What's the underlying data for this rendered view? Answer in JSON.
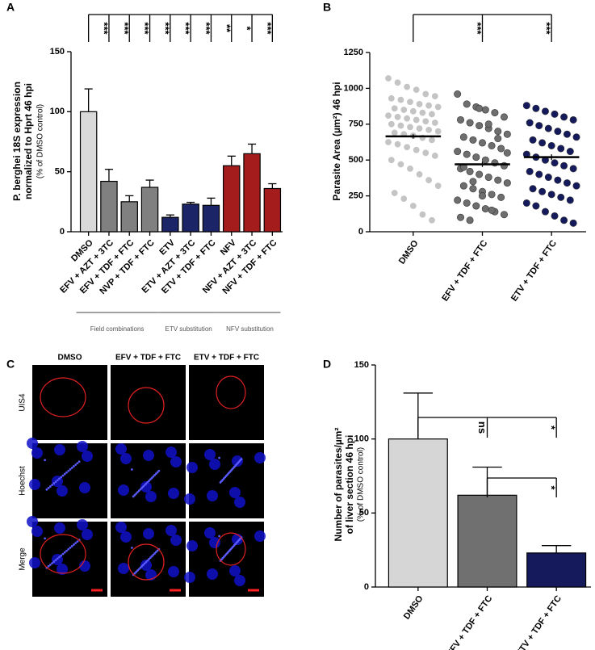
{
  "chart_data": [
    {
      "type": "bar",
      "panel_label": "A",
      "y_label": [
        "P. berghei 18S expression",
        "normalized to Hprt 46 hpi"
      ],
      "y_label_sub": "(% of DMSO control)",
      "categories": [
        "DMSO",
        "EFV + AZT + 3TC",
        "EFV + TDF + FTC",
        "NVP + TDF + FTC",
        "ETV",
        "ETV + AZT + 3TC",
        "ETV + TDF + FTC",
        "NFV",
        "NFV + AZT + 3TC",
        "NFV + TDF + FTC"
      ],
      "values": [
        100,
        42,
        25,
        37,
        12,
        23,
        22,
        55,
        65,
        36
      ],
      "errors": [
        19,
        10,
        5,
        6,
        2,
        1.5,
        6,
        8,
        8,
        4
      ],
      "colors": [
        "#d9d9d9",
        "#808080",
        "#808080",
        "#808080",
        "#1a2466",
        "#1a2466",
        "#1a2466",
        "#a51c1c",
        "#a51c1c",
        "#a51c1c"
      ],
      "significance": [
        null,
        "***",
        "***",
        "***",
        "***",
        "***",
        "***",
        "**",
        "*",
        "***"
      ],
      "groups": [
        "Field combinations",
        "ETV substitution",
        "NFV substitution"
      ],
      "ylim": [
        0,
        150
      ],
      "yticks": [
        0,
        50,
        100,
        150
      ]
    },
    {
      "type": "dot",
      "panel_label": "B",
      "y_label": [
        "Parasite Area (µm²) 46 hpi"
      ],
      "categories": [
        "DMSO",
        "EFV + TDF + FTC",
        "ETV + TDF + FTC"
      ],
      "colors": [
        "#c4c4c4",
        "#6e6e6e",
        "#141a5c"
      ],
      "points": [
        [
          1070,
          1040,
          1010,
          990,
          960,
          945,
          930,
          920,
          905,
          890,
          880,
          870,
          860,
          850,
          840,
          830,
          820,
          810,
          800,
          790,
          780,
          770,
          760,
          750,
          740,
          730,
          720,
          710,
          700,
          690,
          680,
          670,
          655,
          640,
          625,
          610,
          590,
          570,
          550,
          530,
          500,
          470,
          440,
          400,
          360,
          320,
          270,
          230,
          180,
          120,
          80
        ],
        [
          960,
          890,
          870,
          850,
          830,
          800,
          780,
          760,
          740,
          720,
          700,
          680,
          660,
          640,
          620,
          600,
          580,
          560,
          540,
          520,
          500,
          480,
          460,
          440,
          420,
          400,
          380,
          360,
          340,
          320,
          300,
          280,
          260,
          240,
          220,
          200,
          180,
          160,
          140,
          120,
          100,
          80,
          860,
          750,
          650,
          550,
          450,
          350,
          250,
          150
        ],
        [
          880,
          860,
          840,
          820,
          800,
          780,
          760,
          740,
          720,
          700,
          680,
          660,
          640,
          620,
          600,
          580,
          560,
          540,
          520,
          500,
          480,
          460,
          440,
          420,
          400,
          380,
          360,
          340,
          320,
          300,
          280,
          260,
          240,
          220,
          200,
          180,
          140,
          110,
          80,
          60
        ]
      ],
      "means": [
        665,
        470,
        520
      ],
      "mean_errors": [
        15,
        18,
        20
      ],
      "significance": [
        null,
        "***",
        "***"
      ],
      "ylim": [
        0,
        1250
      ],
      "yticks": [
        0,
        250,
        500,
        750,
        1000,
        1250
      ]
    },
    {
      "type": "bar",
      "panel_label": "D",
      "y_label": [
        "Number of parasites/µm²",
        "of liver section 46 hpi"
      ],
      "y_label_sub": "(% of DMSO control)",
      "categories": [
        "DMSO",
        "EFV + TDF + FTC",
        "ETV + TDF + FTC"
      ],
      "values": [
        100,
        62,
        23
      ],
      "errors": [
        31,
        19,
        5
      ],
      "colors": [
        "#d6d6d6",
        "#707070",
        "#141a5c"
      ],
      "significance_vs_dmso": [
        null,
        "ns",
        "*"
      ],
      "significance_vs_efv": [
        null,
        null,
        "*"
      ],
      "ylim": [
        0,
        150
      ],
      "yticks": [
        0,
        50,
        100,
        150
      ]
    }
  ],
  "panel_c": {
    "panel_label": "C",
    "columns": [
      "DMSO",
      "EFV + TDF + FTC",
      "ETV + TDF + FTC"
    ],
    "rows": [
      "UIS4",
      "Hoechst",
      "Merge"
    ]
  }
}
